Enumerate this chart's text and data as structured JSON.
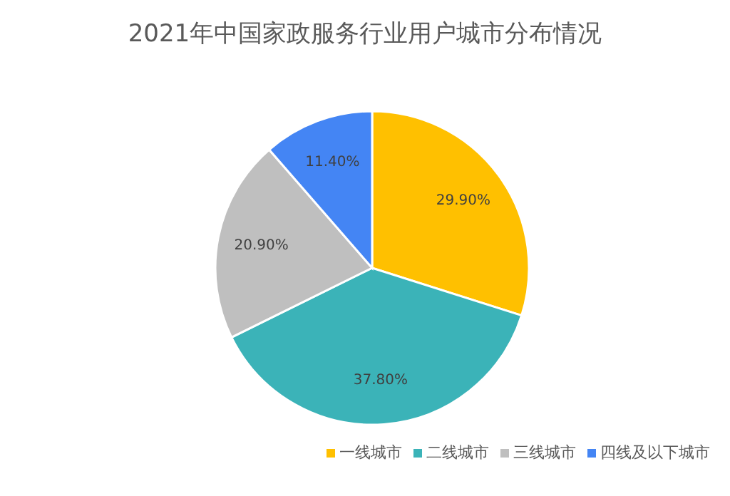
{
  "chart_data": {
    "type": "pie",
    "title": "2021年中国家政服务行业用户城市分布情况",
    "categories": [
      "一线城市",
      "二线城市",
      "三线城市",
      "四线及以下城市"
    ],
    "values": [
      29.9,
      37.8,
      20.9,
      11.4
    ],
    "colors": [
      "#ffc000",
      "#3bb3b8",
      "#bfbfbf",
      "#4485f4"
    ],
    "value_labels": [
      "29.90%",
      "37.80%",
      "20.90%",
      "11.40%"
    ],
    "legend": "bottom"
  }
}
